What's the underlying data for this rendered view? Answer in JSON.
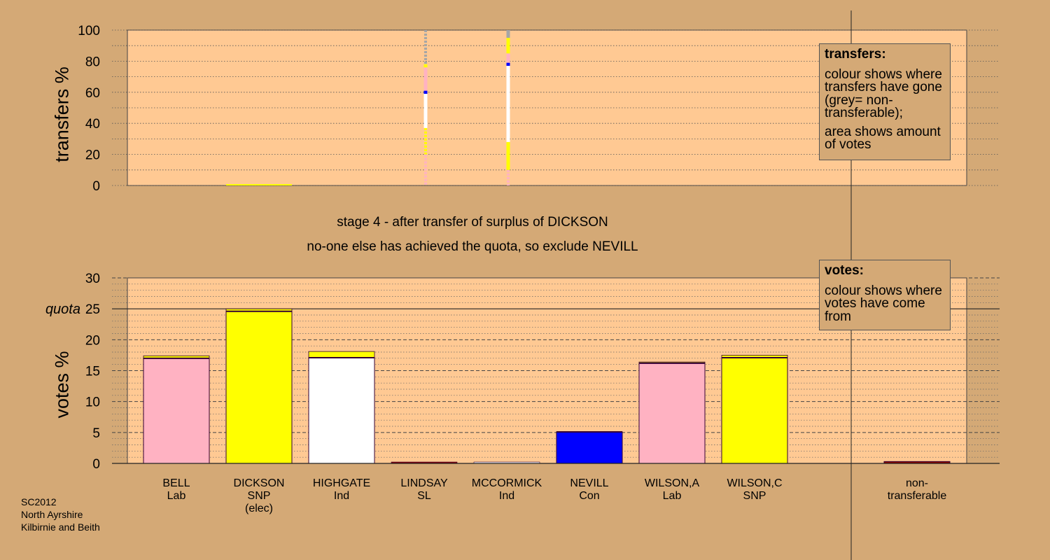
{
  "colors": {
    "background": "#d4a976",
    "plot": "#ffc993",
    "Lab": "#ffb2c2",
    "SNP": "#ffff00",
    "Ind": "#ffffff",
    "Con": "#0000ff",
    "SL": "#8b0000",
    "nontransferable": "#a6a6a6",
    "outline": "#330033"
  },
  "transfers_box": {
    "title": "transfers:",
    "line1": "colour shows where transfers have gone (grey= non-transferable);",
    "line2": "area shows amount of votes"
  },
  "votes_box": {
    "title": "votes:",
    "line1": "colour shows where votes have come from"
  },
  "stage_line1": "stage 4 - after transfer of surplus of DICKSON",
  "stage_line2": "no-one else has achieved the quota, so exclude NEVILL",
  "footer": {
    "line1": "SC2012",
    "line2": "North Ayrshire",
    "line3": "Kilbirnie and Beith"
  },
  "chart_data": [
    {
      "type": "bar",
      "ylabel": "transfers %",
      "ylim": [
        0,
        100
      ],
      "yticks": [
        0,
        20,
        40,
        60,
        80,
        100
      ],
      "categories": [
        "BELL",
        "DICKSON",
        "HIGHGATE",
        "LINDSAY",
        "MCCORMICK",
        "NEVILL",
        "WILSON,A",
        "WILSON,C"
      ],
      "columns": [
        {
          "candidate": "LINDSAY",
          "segments": [
            {
              "party": "Lab",
              "from": 0,
              "to": 20,
              "pattern": "dash"
            },
            {
              "party": "SNP",
              "from": 20,
              "to": 37,
              "pattern": "dash"
            },
            {
              "party": "Ind",
              "from": 37,
              "to": 59
            },
            {
              "party": "Con",
              "from": 59,
              "to": 61
            },
            {
              "party": "Lab",
              "from": 61,
              "to": 76
            },
            {
              "party": "SNP",
              "from": 76,
              "to": 78
            },
            {
              "party": "nontransferable",
              "from": 78,
              "to": 100,
              "pattern": "dash"
            }
          ]
        },
        {
          "candidate": "MCCORMICK",
          "segments": [
            {
              "party": "Lab",
              "from": 0,
              "to": 10,
              "pattern": "dash"
            },
            {
              "party": "SNP",
              "from": 10,
              "to": 28
            },
            {
              "party": "Ind",
              "from": 28,
              "to": 77
            },
            {
              "party": "Con",
              "from": 77,
              "to": 79
            },
            {
              "party": "Lab",
              "from": 79,
              "to": 85
            },
            {
              "party": "SNP",
              "from": 85,
              "to": 95
            },
            {
              "party": "nontransferable",
              "from": 95,
              "to": 100
            }
          ]
        }
      ]
    },
    {
      "type": "bar",
      "ylabel": "votes %",
      "ylim": [
        0,
        30
      ],
      "yticks": [
        0,
        5,
        10,
        15,
        20,
        25,
        30
      ],
      "quota": 25,
      "quota_label": "quota",
      "categories": [
        {
          "name": "BELL",
          "party": "Lab",
          "note": ""
        },
        {
          "name": "DICKSON",
          "party": "SNP",
          "note": "(elec)"
        },
        {
          "name": "HIGHGATE",
          "party": "Ind",
          "note": ""
        },
        {
          "name": "LINDSAY",
          "party": "SL",
          "note": ""
        },
        {
          "name": "MCCORMICK",
          "party": "Ind",
          "note": ""
        },
        {
          "name": "NEVILL",
          "party": "Con",
          "note": ""
        },
        {
          "name": "WILSON,A",
          "party": "Lab",
          "note": ""
        },
        {
          "name": "WILSON,C",
          "party": "SNP",
          "note": ""
        }
      ],
      "values": [
        17.4,
        25.0,
        18.1,
        0.1,
        0.1,
        5.1,
        16.4,
        17.5
      ],
      "first_preference": [
        17.0,
        24.6,
        17.1,
        0.1,
        0.1,
        5.1,
        16.2,
        17.1
      ],
      "nontransferable_label": "non-\ntransferable",
      "nontransferable_value": 0.3
    }
  ]
}
